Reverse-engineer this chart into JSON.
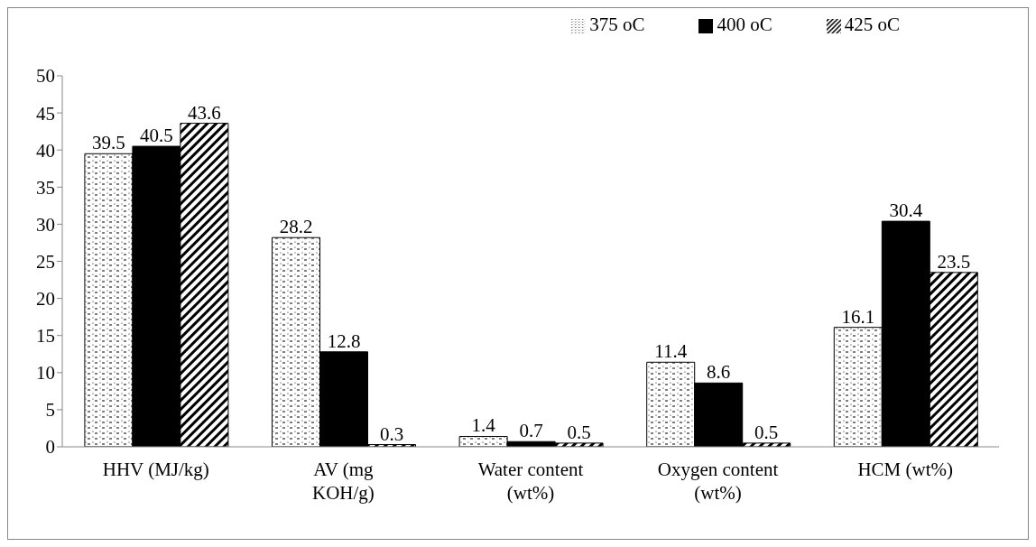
{
  "chart_data": {
    "type": "bar",
    "categories": [
      "HHV (MJ/kg)",
      "AV (mg KOH/g)",
      "Water content (wt%)",
      "Oxygen content (wt%)",
      "HCM (wt%)"
    ],
    "series": [
      {
        "name": "375 oC",
        "color": "#000000",
        "values": [
          39.5,
          28.2,
          1.4,
          11.4,
          16.1
        ]
      },
      {
        "name": "400 oC",
        "color": "#000000",
        "values": [
          40.5,
          12.8,
          0.7,
          8.6,
          30.4
        ]
      },
      {
        "name": "425 oC",
        "color": "#000000",
        "values": [
          43.6,
          0.3,
          0.5,
          0.5,
          23.5
        ]
      }
    ],
    "ylim": [
      0,
      50
    ],
    "yticks": [
      0,
      5,
      10,
      15,
      20,
      25,
      30,
      35,
      40,
      45,
      50
    ],
    "grid": false,
    "legend": "top right",
    "data_labels": true
  }
}
